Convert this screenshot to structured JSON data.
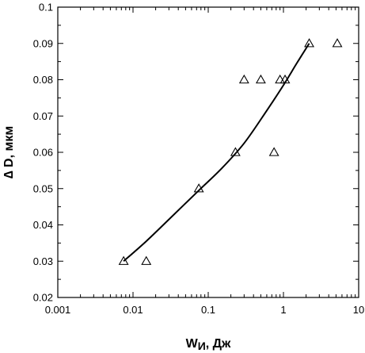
{
  "chart_data": {
    "type": "scatter",
    "xlabel": "W",
    "xlabel_sub": "И",
    "xlabel_unit": ", Дж",
    "ylabel": "∆ D, мкм",
    "x_scale": "log",
    "xlim": [
      0.001,
      10
    ],
    "ylim": [
      0.02,
      0.1
    ],
    "x_ticks": [
      0.001,
      0.01,
      0.1,
      1,
      10
    ],
    "x_tick_labels": [
      "0.001",
      "0.01",
      "0.1",
      "1",
      "10"
    ],
    "y_ticks": [
      0.02,
      0.03,
      0.04,
      0.05,
      0.06,
      0.07,
      0.08,
      0.09,
      0.1
    ],
    "y_tick_labels": [
      "0.02",
      "0.03",
      "0.04",
      "0.05",
      "0.06",
      "0.07",
      "0.08",
      "0.09",
      "0.1"
    ],
    "grid": false,
    "marker": "triangle-open",
    "points": [
      {
        "x": 0.0075,
        "y": 0.03
      },
      {
        "x": 0.015,
        "y": 0.03
      },
      {
        "x": 0.075,
        "y": 0.05
      },
      {
        "x": 0.23,
        "y": 0.06
      },
      {
        "x": 0.3,
        "y": 0.08
      },
      {
        "x": 0.5,
        "y": 0.08
      },
      {
        "x": 0.75,
        "y": 0.06
      },
      {
        "x": 0.9,
        "y": 0.08
      },
      {
        "x": 1.05,
        "y": 0.08
      },
      {
        "x": 2.2,
        "y": 0.09
      },
      {
        "x": 5.2,
        "y": 0.09
      }
    ],
    "fit_curve": [
      {
        "x": 0.0075,
        "y": 0.03
      },
      {
        "x": 0.015,
        "y": 0.0355
      },
      {
        "x": 0.03,
        "y": 0.0415
      },
      {
        "x": 0.075,
        "y": 0.0495
      },
      {
        "x": 0.15,
        "y": 0.0555
      },
      {
        "x": 0.3,
        "y": 0.0625
      },
      {
        "x": 0.6,
        "y": 0.0715
      },
      {
        "x": 1.0,
        "y": 0.0785
      },
      {
        "x": 1.5,
        "y": 0.0845
      },
      {
        "x": 2.2,
        "y": 0.09
      }
    ]
  }
}
